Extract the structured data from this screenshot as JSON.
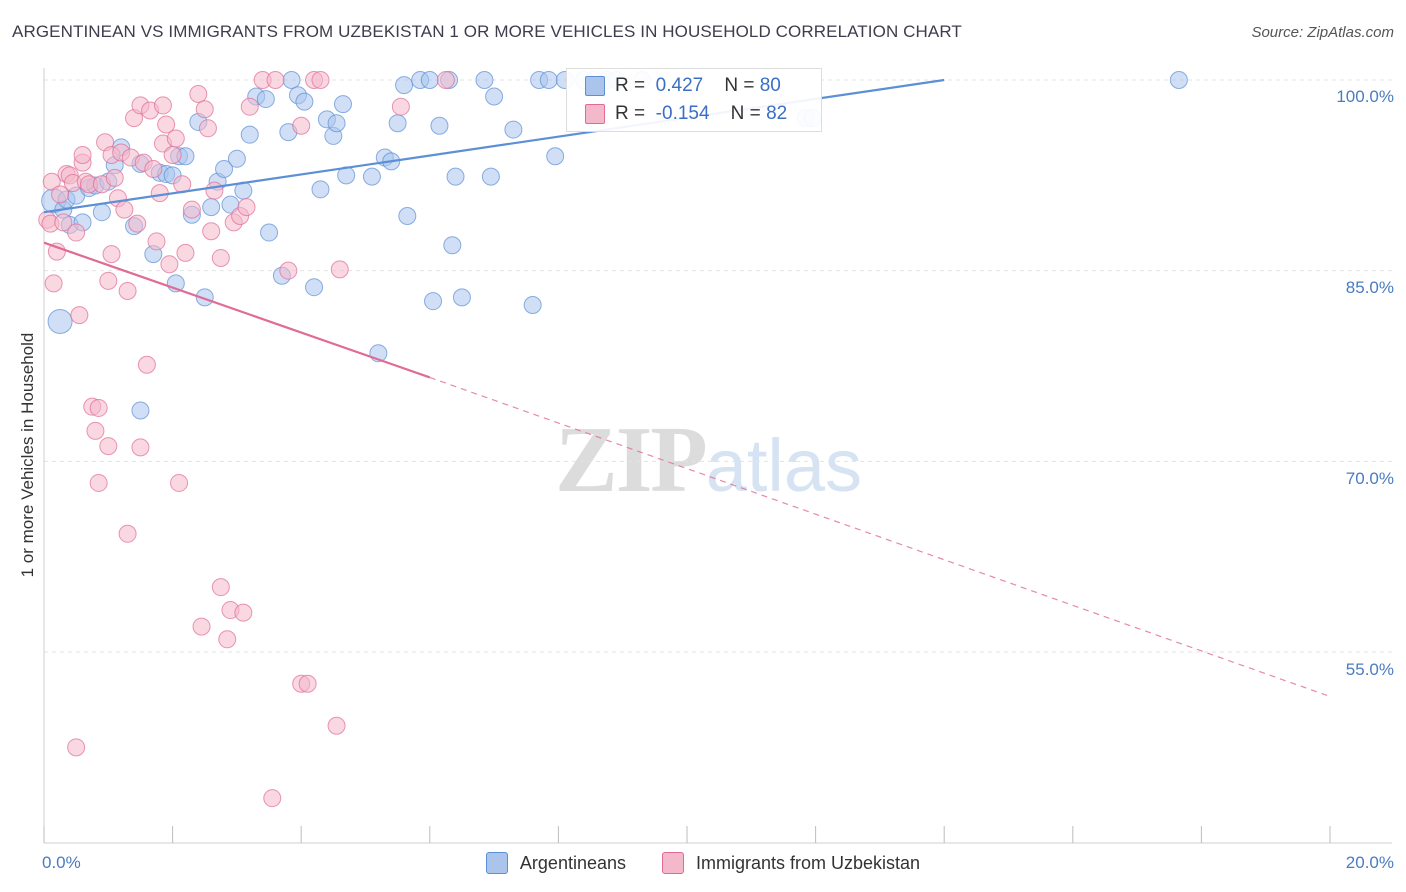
{
  "header": {
    "title": "ARGENTINEAN VS IMMIGRANTS FROM UZBEKISTAN 1 OR MORE VEHICLES IN HOUSEHOLD CORRELATION CHART",
    "source": "Source: ZipAtlas.com"
  },
  "watermark": {
    "zip": "ZIP",
    "atlas": "atlas"
  },
  "legend": {
    "rows": [
      {
        "r_label": "R =",
        "r_value": "0.427",
        "n_label": "N =",
        "n_value": "80",
        "color": "#aac4ec"
      },
      {
        "r_label": "R =",
        "r_value": "-0.154",
        "n_label": "N =",
        "n_value": "82",
        "color": "#f4b8cb"
      }
    ]
  },
  "bottom_legend": {
    "items": [
      {
        "label": "Argentineans",
        "color": "#aac4ec"
      },
      {
        "label": "Immigrants from Uzbekistan",
        "color": "#f4b8cb"
      }
    ]
  },
  "chart_data": {
    "type": "scatter",
    "title": "ARGENTINEAN VS IMMIGRANTS FROM UZBEKISTAN 1 OR MORE VEHICLES IN HOUSEHOLD CORRELATION CHART",
    "xlabel": "",
    "ylabel": "1 or more Vehicles in Household",
    "xlim": [
      0,
      20
    ],
    "ylim": [
      41.5,
      102
    ],
    "x_ticks": [
      "0.0%",
      "20.0%"
    ],
    "y_ticks": [
      {
        "value": 100,
        "label": "100.0%"
      },
      {
        "value": 85,
        "label": "85.0%"
      },
      {
        "value": 70,
        "label": "70.0%"
      },
      {
        "value": 55,
        "label": "55.0%"
      }
    ],
    "grid": true,
    "legend_position": "top-center",
    "series": [
      {
        "name": "Argentineans",
        "color": "#5b8fd6",
        "fill": "#aac4ec",
        "R": 0.427,
        "N": 80,
        "trend": {
          "x": [
            0,
            14
          ],
          "y": [
            89.6,
            100.0
          ],
          "dashed_to": null
        },
        "points": [
          [
            0.15,
            90.5
          ],
          [
            0.25,
            81.0
          ],
          [
            0.3,
            89.8
          ],
          [
            0.35,
            90.6
          ],
          [
            0.4,
            88.6
          ],
          [
            0.5,
            90.9
          ],
          [
            0.6,
            88.8
          ],
          [
            0.7,
            91.5
          ],
          [
            0.8,
            91.7
          ],
          [
            0.9,
            89.6
          ],
          [
            1.0,
            92.0
          ],
          [
            1.1,
            93.3
          ],
          [
            1.2,
            94.7
          ],
          [
            1.4,
            88.5
          ],
          [
            1.5,
            93.4
          ],
          [
            1.5,
            74.0
          ],
          [
            1.7,
            86.3
          ],
          [
            1.8,
            92.7
          ],
          [
            1.9,
            92.6
          ],
          [
            2.0,
            92.5
          ],
          [
            2.05,
            84.0
          ],
          [
            2.1,
            94.0
          ],
          [
            2.2,
            94.0
          ],
          [
            2.3,
            89.4
          ],
          [
            2.4,
            96.7
          ],
          [
            2.5,
            82.9
          ],
          [
            2.6,
            90.0
          ],
          [
            2.7,
            92.0
          ],
          [
            2.8,
            93.0
          ],
          [
            2.9,
            90.2
          ],
          [
            3.0,
            93.8
          ],
          [
            3.1,
            91.3
          ],
          [
            3.2,
            95.7
          ],
          [
            3.3,
            98.7
          ],
          [
            3.45,
            98.5
          ],
          [
            3.5,
            88.0
          ],
          [
            3.7,
            84.6
          ],
          [
            3.8,
            95.9
          ],
          [
            3.85,
            100.0
          ],
          [
            3.95,
            98.8
          ],
          [
            4.05,
            98.3
          ],
          [
            4.2,
            83.7
          ],
          [
            4.3,
            91.4
          ],
          [
            4.4,
            96.9
          ],
          [
            4.5,
            95.6
          ],
          [
            4.55,
            96.6
          ],
          [
            4.65,
            98.1
          ],
          [
            4.7,
            92.5
          ],
          [
            5.1,
            92.4
          ],
          [
            5.2,
            78.5
          ],
          [
            5.3,
            93.9
          ],
          [
            5.4,
            93.6
          ],
          [
            5.5,
            96.6
          ],
          [
            5.6,
            99.6
          ],
          [
            5.65,
            89.3
          ],
          [
            5.85,
            100.0
          ],
          [
            6.0,
            100.0
          ],
          [
            6.05,
            82.6
          ],
          [
            6.15,
            96.4
          ],
          [
            6.3,
            100.0
          ],
          [
            6.35,
            87.0
          ],
          [
            6.4,
            92.4
          ],
          [
            6.5,
            82.9
          ],
          [
            6.85,
            100.0
          ],
          [
            6.95,
            92.4
          ],
          [
            7.0,
            98.7
          ],
          [
            7.3,
            96.1
          ],
          [
            7.6,
            82.3
          ],
          [
            7.7,
            100.0
          ],
          [
            7.85,
            100.0
          ],
          [
            7.95,
            94.0
          ],
          [
            8.1,
            100.0
          ],
          [
            8.4,
            100.0
          ],
          [
            8.55,
            100.0
          ],
          [
            8.75,
            100.0
          ],
          [
            8.9,
            100.0
          ],
          [
            9.3,
            100.0
          ],
          [
            11.85,
            97.0
          ],
          [
            11.95,
            97.0
          ],
          [
            17.65,
            100.0
          ]
        ]
      },
      {
        "name": "Immigrants from Uzbekistan",
        "color": "#e06b95",
        "fill": "#f4b8cb",
        "R": -0.154,
        "N": 82,
        "trend": {
          "x": [
            0,
            6
          ],
          "y": [
            87.2,
            76.6
          ],
          "dashed_to": {
            "x": 20,
            "y": 51.5
          }
        },
        "points": [
          [
            0.05,
            89.0
          ],
          [
            0.1,
            88.7
          ],
          [
            0.12,
            92.0
          ],
          [
            0.15,
            84.0
          ],
          [
            0.2,
            86.5
          ],
          [
            0.25,
            91.0
          ],
          [
            0.3,
            88.8
          ],
          [
            0.35,
            92.6
          ],
          [
            0.4,
            92.5
          ],
          [
            0.45,
            91.9
          ],
          [
            0.5,
            88.0
          ],
          [
            0.5,
            47.5
          ],
          [
            0.55,
            81.5
          ],
          [
            0.6,
            93.5
          ],
          [
            0.6,
            94.1
          ],
          [
            0.65,
            92.0
          ],
          [
            0.7,
            91.8
          ],
          [
            0.75,
            74.3
          ],
          [
            0.8,
            72.4
          ],
          [
            0.85,
            68.3
          ],
          [
            0.85,
            74.2
          ],
          [
            0.9,
            91.8
          ],
          [
            0.95,
            95.1
          ],
          [
            1.0,
            71.2
          ],
          [
            1.0,
            84.2
          ],
          [
            1.05,
            86.3
          ],
          [
            1.05,
            94.1
          ],
          [
            1.1,
            92.3
          ],
          [
            1.15,
            90.7
          ],
          [
            1.2,
            94.3
          ],
          [
            1.25,
            89.8
          ],
          [
            1.3,
            83.4
          ],
          [
            1.3,
            64.3
          ],
          [
            1.35,
            93.9
          ],
          [
            1.4,
            97.0
          ],
          [
            1.45,
            88.7
          ],
          [
            1.5,
            98.0
          ],
          [
            1.5,
            71.1
          ],
          [
            1.55,
            93.5
          ],
          [
            1.6,
            77.6
          ],
          [
            1.65,
            97.6
          ],
          [
            1.7,
            93.0
          ],
          [
            1.75,
            87.3
          ],
          [
            1.8,
            91.1
          ],
          [
            1.85,
            98.0
          ],
          [
            1.85,
            95.0
          ],
          [
            1.9,
            96.5
          ],
          [
            1.95,
            85.5
          ],
          [
            2.0,
            94.1
          ],
          [
            2.05,
            95.4
          ],
          [
            2.1,
            68.3
          ],
          [
            2.15,
            91.8
          ],
          [
            2.2,
            86.4
          ],
          [
            2.3,
            89.8
          ],
          [
            2.4,
            98.9
          ],
          [
            2.45,
            57.0
          ],
          [
            2.5,
            97.7
          ],
          [
            2.55,
            96.2
          ],
          [
            2.6,
            88.1
          ],
          [
            2.65,
            91.3
          ],
          [
            2.75,
            86.0
          ],
          [
            2.75,
            60.1
          ],
          [
            2.85,
            56.0
          ],
          [
            2.9,
            58.3
          ],
          [
            2.95,
            88.8
          ],
          [
            3.05,
            89.3
          ],
          [
            3.1,
            58.1
          ],
          [
            3.15,
            90.0
          ],
          [
            3.2,
            97.9
          ],
          [
            3.4,
            100.0
          ],
          [
            3.6,
            100.0
          ],
          [
            3.55,
            43.5
          ],
          [
            3.8,
            85.0
          ],
          [
            4.0,
            96.4
          ],
          [
            4.0,
            52.5
          ],
          [
            4.1,
            52.5
          ],
          [
            4.2,
            100.0
          ],
          [
            4.3,
            100.0
          ],
          [
            4.55,
            49.2
          ],
          [
            4.6,
            85.1
          ],
          [
            5.55,
            97.9
          ],
          [
            6.25,
            100.0
          ]
        ]
      }
    ]
  }
}
